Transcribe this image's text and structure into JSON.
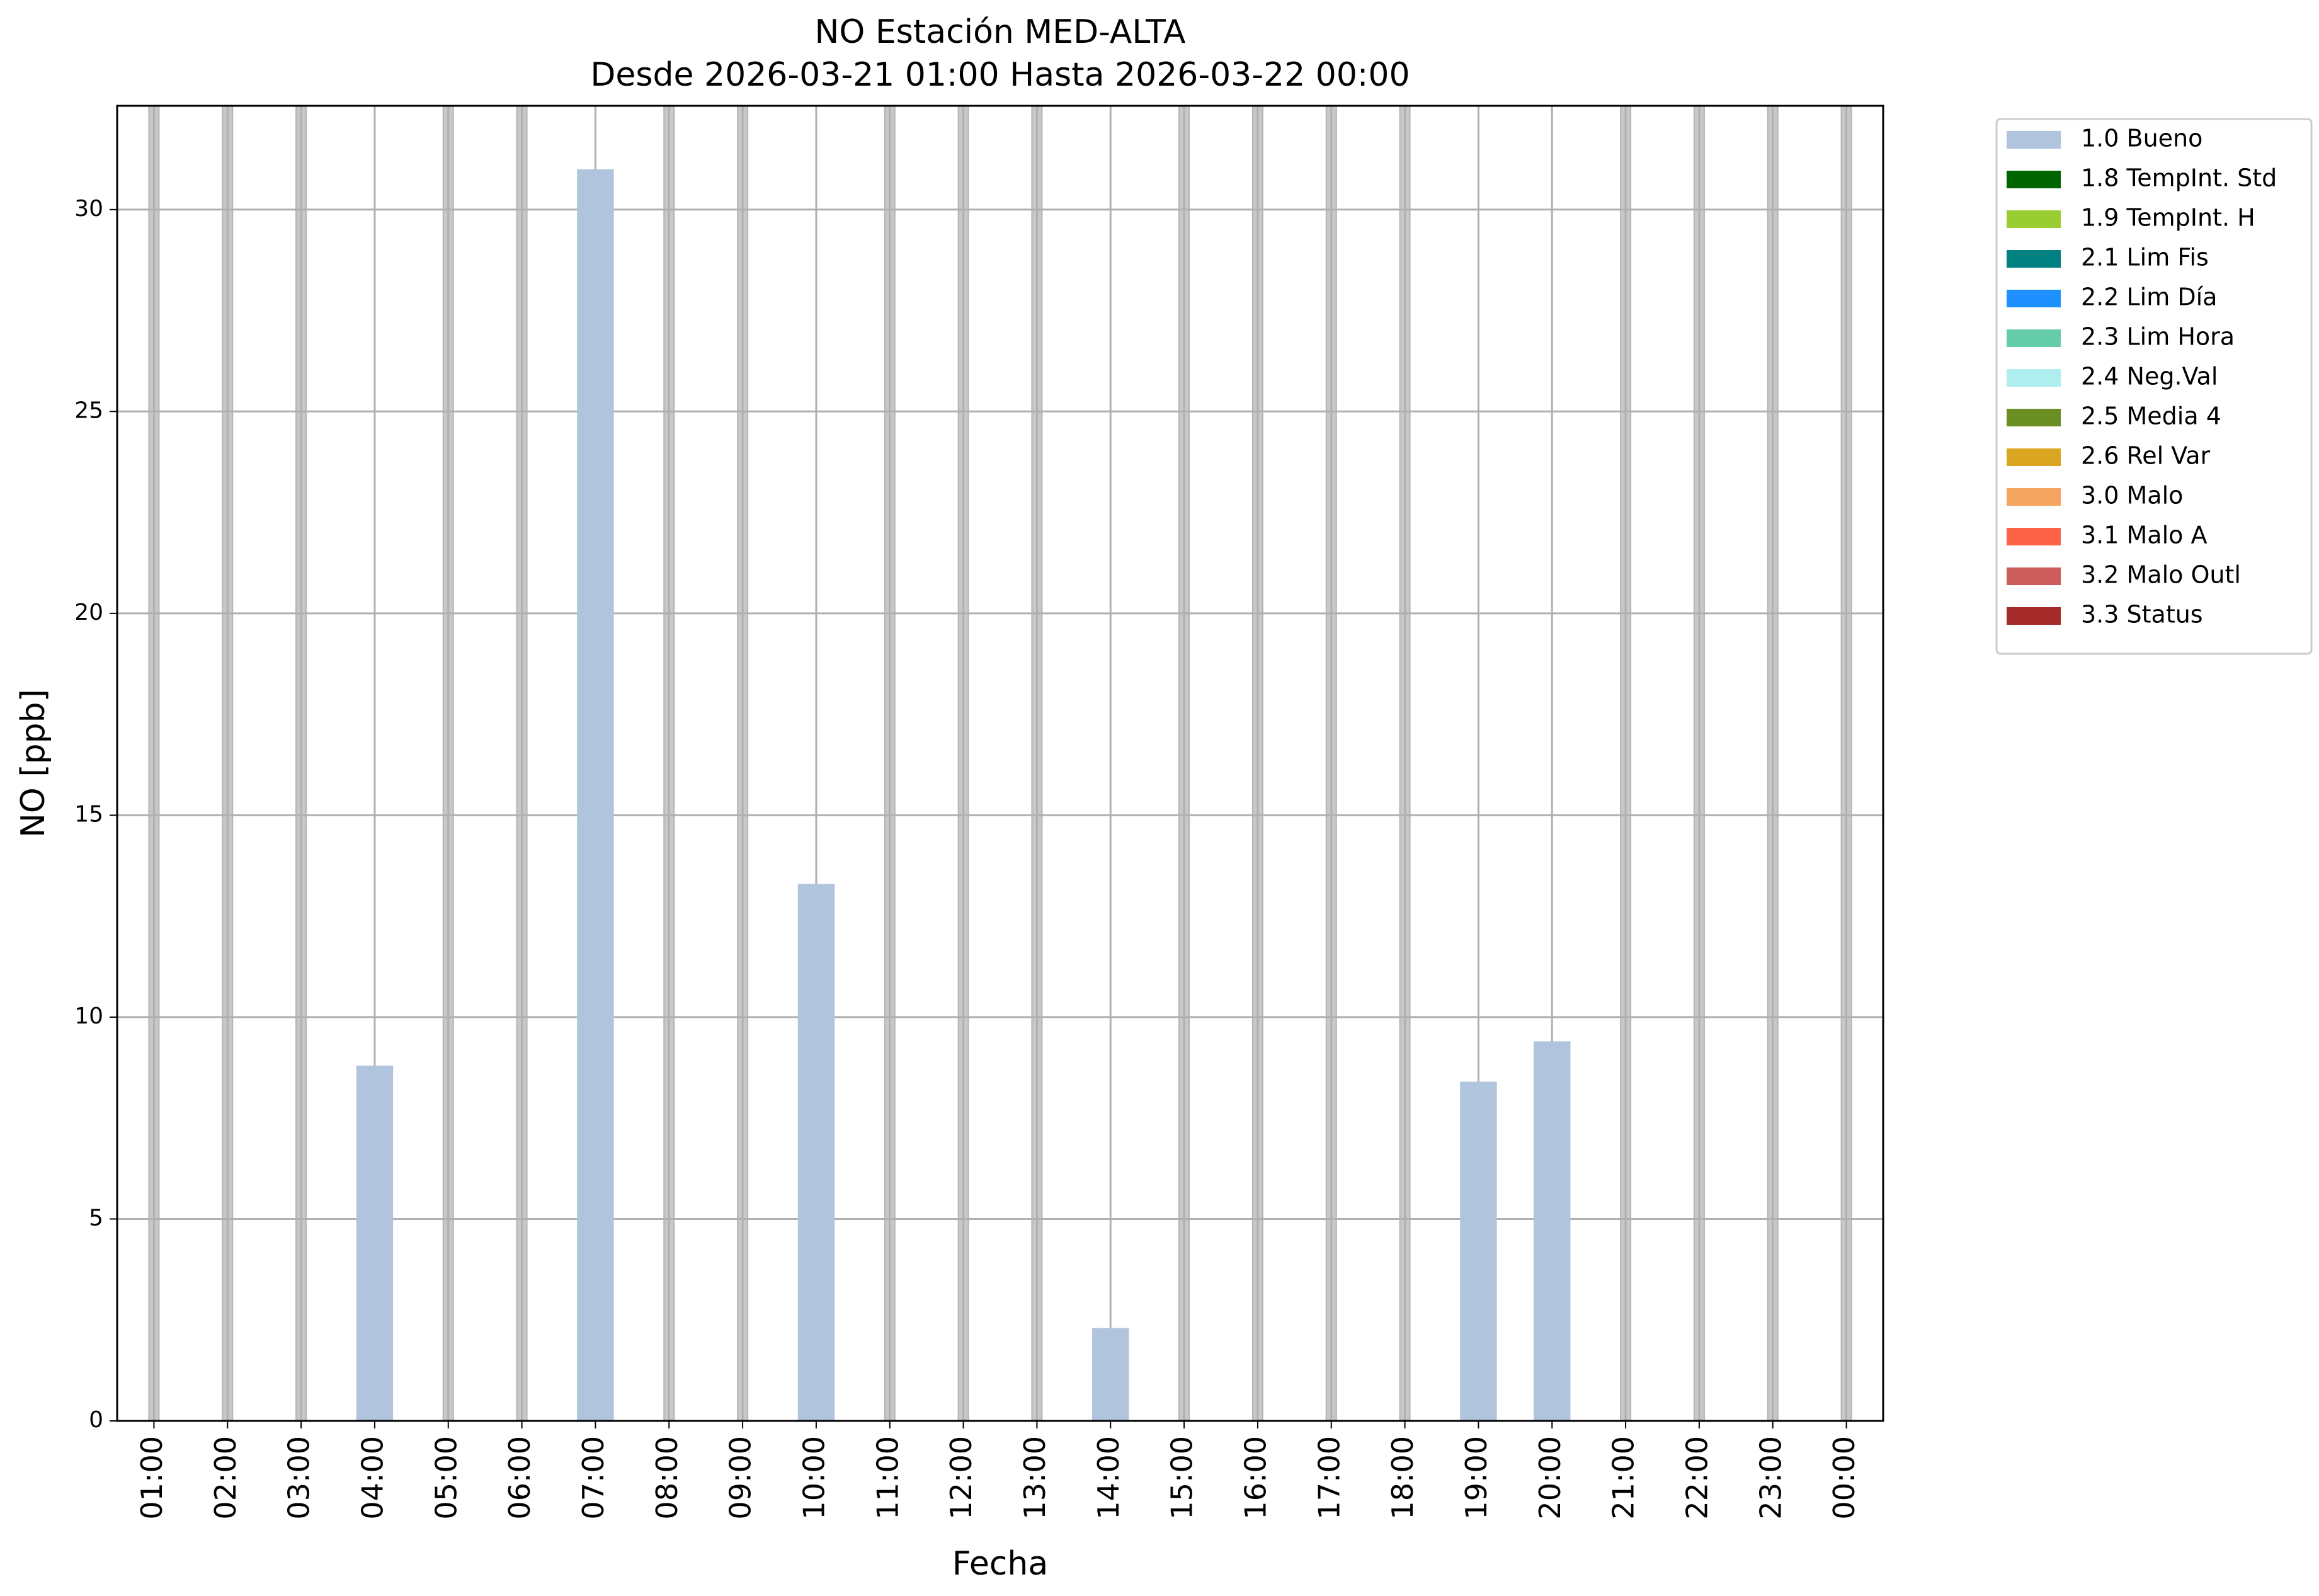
{
  "chart_data": {
    "type": "bar",
    "title": "NO Estación MED-ALTA",
    "subtitle": "Desde 2026-03-21 01:00 Hasta 2026-03-22 00:00",
    "xlabel": "Fecha",
    "ylabel": "NO [ppb]",
    "categories": [
      "01:00",
      "02:00",
      "03:00",
      "04:00",
      "05:00",
      "06:00",
      "07:00",
      "08:00",
      "09:00",
      "10:00",
      "11:00",
      "12:00",
      "13:00",
      "14:00",
      "15:00",
      "16:00",
      "17:00",
      "18:00",
      "19:00",
      "20:00",
      "21:00",
      "22:00",
      "23:00",
      "00:00"
    ],
    "series": [
      {
        "name": "1.0 Bueno",
        "color": "#b0c4de",
        "values": [
          null,
          null,
          null,
          8.8,
          null,
          null,
          31,
          null,
          null,
          13.3,
          null,
          null,
          null,
          2.3,
          null,
          null,
          null,
          null,
          8.4,
          9.4,
          null,
          null,
          null,
          null
        ]
      },
      {
        "name": "1.8 TempInt. Std",
        "color": "#006400",
        "values": [
          null,
          null,
          null,
          null,
          null,
          null,
          null,
          null,
          null,
          null,
          null,
          null,
          null,
          null,
          null,
          null,
          null,
          null,
          null,
          null,
          null,
          null,
          null,
          null
        ]
      },
      {
        "name": "1.9 TempInt. H",
        "color": "#9acd32",
        "values": [
          null,
          null,
          null,
          null,
          null,
          null,
          null,
          null,
          null,
          null,
          null,
          null,
          null,
          null,
          null,
          null,
          null,
          null,
          null,
          null,
          null,
          null,
          null,
          null
        ]
      },
      {
        "name": "2.1 Lim Fis",
        "color": "#008080",
        "values": [
          null,
          null,
          null,
          null,
          null,
          null,
          null,
          null,
          null,
          null,
          null,
          null,
          null,
          null,
          null,
          null,
          null,
          null,
          null,
          null,
          null,
          null,
          null,
          null
        ]
      },
      {
        "name": "2.2 Lim Día",
        "color": "#1e90ff",
        "values": [
          null,
          null,
          null,
          null,
          null,
          null,
          null,
          null,
          null,
          null,
          null,
          null,
          null,
          null,
          null,
          null,
          null,
          null,
          null,
          null,
          null,
          null,
          null,
          null
        ]
      },
      {
        "name": "2.3 Lim Hora",
        "color": "#66cdaa",
        "values": [
          null,
          null,
          null,
          null,
          null,
          null,
          null,
          null,
          null,
          null,
          null,
          null,
          null,
          null,
          null,
          null,
          null,
          null,
          null,
          null,
          null,
          null,
          null,
          null
        ]
      },
      {
        "name": "2.4 Neg.Val",
        "color": "#afeeee",
        "values": [
          null,
          null,
          null,
          null,
          null,
          null,
          null,
          null,
          null,
          null,
          null,
          null,
          null,
          null,
          null,
          null,
          null,
          null,
          null,
          null,
          null,
          null,
          null,
          null
        ]
      },
      {
        "name": "2.5 Media 4",
        "color": "#6b8e23",
        "values": [
          null,
          null,
          null,
          null,
          null,
          null,
          null,
          null,
          null,
          null,
          null,
          null,
          null,
          null,
          null,
          null,
          null,
          null,
          null,
          null,
          null,
          null,
          null,
          null
        ]
      },
      {
        "name": "2.6 Rel Var",
        "color": "#daa520",
        "values": [
          null,
          null,
          null,
          null,
          null,
          null,
          null,
          null,
          null,
          null,
          null,
          null,
          null,
          null,
          null,
          null,
          null,
          null,
          null,
          null,
          null,
          null,
          null,
          null
        ]
      },
      {
        "name": "3.0 Malo",
        "color": "#f4a460",
        "values": [
          null,
          null,
          null,
          null,
          null,
          null,
          null,
          null,
          null,
          null,
          null,
          null,
          null,
          null,
          null,
          null,
          null,
          null,
          null,
          null,
          null,
          null,
          null,
          null
        ]
      },
      {
        "name": "3.1 Malo A",
        "color": "#ff6347",
        "values": [
          null,
          null,
          null,
          null,
          null,
          null,
          null,
          null,
          null,
          null,
          null,
          null,
          null,
          null,
          null,
          null,
          null,
          null,
          null,
          null,
          null,
          null,
          null,
          null
        ]
      },
      {
        "name": "3.2 Malo Outl",
        "color": "#cd5c5c",
        "values": [
          null,
          null,
          null,
          null,
          null,
          null,
          null,
          null,
          null,
          null,
          null,
          null,
          null,
          null,
          null,
          null,
          null,
          null,
          null,
          null,
          null,
          null,
          null,
          null
        ]
      },
      {
        "name": "3.3 Status",
        "color": "#a52a2a",
        "values": [
          null,
          null,
          null,
          null,
          null,
          null,
          null,
          null,
          null,
          null,
          null,
          null,
          null,
          null,
          null,
          null,
          null,
          null,
          null,
          null,
          null,
          null,
          null,
          null
        ]
      }
    ],
    "ylim": [
      0,
      32.57
    ],
    "yticks": [
      0,
      5,
      10,
      15,
      20,
      25,
      30
    ],
    "grid": true,
    "legend": "outside-upper-right"
  }
}
